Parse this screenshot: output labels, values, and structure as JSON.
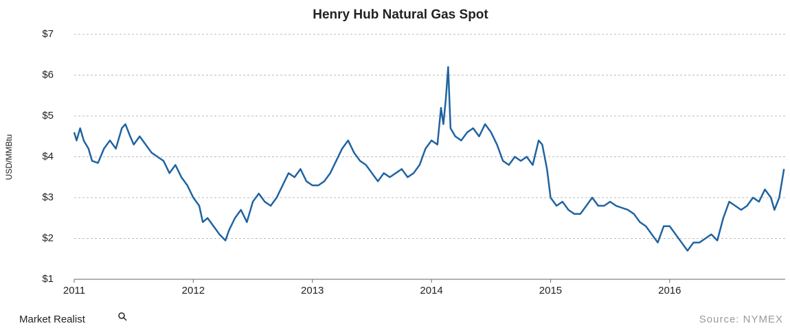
{
  "chart_data": {
    "type": "line",
    "title": "Henry Hub Natural Gas Spot",
    "y_label": "USD/MMBtu",
    "color": "#1f63a0",
    "grid": true,
    "xlim": [
      2011,
      2016.97
    ],
    "xticks": [
      2011,
      2012,
      2013,
      2014,
      2015,
      2016
    ],
    "ylim": [
      1,
      7
    ],
    "yticks": [
      {
        "value": 1,
        "label": "$1"
      },
      {
        "value": 2,
        "label": "$2"
      },
      {
        "value": 3,
        "label": "$3"
      },
      {
        "value": 4,
        "label": "$4"
      },
      {
        "value": 5,
        "label": "$5"
      },
      {
        "value": 6,
        "label": "$6"
      },
      {
        "value": 7,
        "label": "$7"
      }
    ],
    "x": [
      2011.0,
      2011.02,
      2011.05,
      2011.08,
      2011.12,
      2011.15,
      2011.2,
      2011.25,
      2011.3,
      2011.35,
      2011.4,
      2011.43,
      2011.47,
      2011.5,
      2011.55,
      2011.6,
      2011.65,
      2011.7,
      2011.75,
      2011.8,
      2011.85,
      2011.9,
      2011.95,
      2012.0,
      2012.05,
      2012.08,
      2012.12,
      2012.17,
      2012.22,
      2012.27,
      2012.3,
      2012.35,
      2012.4,
      2012.45,
      2012.5,
      2012.55,
      2012.6,
      2012.65,
      2012.7,
      2012.75,
      2012.8,
      2012.85,
      2012.9,
      2012.95,
      2013.0,
      2013.05,
      2013.1,
      2013.15,
      2013.2,
      2013.25,
      2013.3,
      2013.35,
      2013.4,
      2013.45,
      2013.5,
      2013.55,
      2013.6,
      2013.65,
      2013.7,
      2013.75,
      2013.8,
      2013.85,
      2013.9,
      2013.95,
      2014.0,
      2014.05,
      2014.08,
      2014.1,
      2014.12,
      2014.14,
      2014.16,
      2014.2,
      2014.25,
      2014.3,
      2014.35,
      2014.4,
      2014.45,
      2014.5,
      2014.55,
      2014.6,
      2014.65,
      2014.7,
      2014.75,
      2014.8,
      2014.85,
      2014.9,
      2014.93,
      2014.97,
      2015.0,
      2015.05,
      2015.1,
      2015.15,
      2015.2,
      2015.25,
      2015.3,
      2015.35,
      2015.4,
      2015.45,
      2015.5,
      2015.55,
      2015.6,
      2015.65,
      2015.7,
      2015.75,
      2015.8,
      2015.85,
      2015.9,
      2015.95,
      2016.0,
      2016.05,
      2016.1,
      2016.15,
      2016.2,
      2016.25,
      2016.3,
      2016.35,
      2016.4,
      2016.45,
      2016.5,
      2016.55,
      2016.6,
      2016.65,
      2016.7,
      2016.75,
      2016.8,
      2016.85,
      2016.88,
      2016.92,
      2016.96
    ],
    "values": [
      4.6,
      4.4,
      4.7,
      4.4,
      4.2,
      3.9,
      3.85,
      4.2,
      4.4,
      4.2,
      4.7,
      4.8,
      4.5,
      4.3,
      4.5,
      4.3,
      4.1,
      4.0,
      3.9,
      3.6,
      3.8,
      3.5,
      3.3,
      3.0,
      2.8,
      2.4,
      2.5,
      2.3,
      2.1,
      1.95,
      2.2,
      2.5,
      2.7,
      2.4,
      2.9,
      3.1,
      2.9,
      2.8,
      3.0,
      3.3,
      3.6,
      3.5,
      3.7,
      3.4,
      3.3,
      3.3,
      3.4,
      3.6,
      3.9,
      4.2,
      4.4,
      4.1,
      3.9,
      3.8,
      3.6,
      3.4,
      3.6,
      3.5,
      3.6,
      3.7,
      3.5,
      3.6,
      3.8,
      4.2,
      4.4,
      4.3,
      5.2,
      4.8,
      5.4,
      6.2,
      4.7,
      4.5,
      4.4,
      4.6,
      4.7,
      4.5,
      4.8,
      4.6,
      4.3,
      3.9,
      3.8,
      4.0,
      3.9,
      4.0,
      3.8,
      4.4,
      4.3,
      3.7,
      3.0,
      2.8,
      2.9,
      2.7,
      2.6,
      2.6,
      2.8,
      3.0,
      2.8,
      2.8,
      2.9,
      2.8,
      2.75,
      2.7,
      2.6,
      2.4,
      2.3,
      2.1,
      1.9,
      2.3,
      2.3,
      2.1,
      1.9,
      1.7,
      1.9,
      1.9,
      2.0,
      2.1,
      1.95,
      2.5,
      2.9,
      2.8,
      2.7,
      2.8,
      3.0,
      2.9,
      3.2,
      3.0,
      2.7,
      3.0,
      3.7
    ]
  },
  "footer": {
    "brand": "Market Realist",
    "source": "Source: NYMEX"
  }
}
